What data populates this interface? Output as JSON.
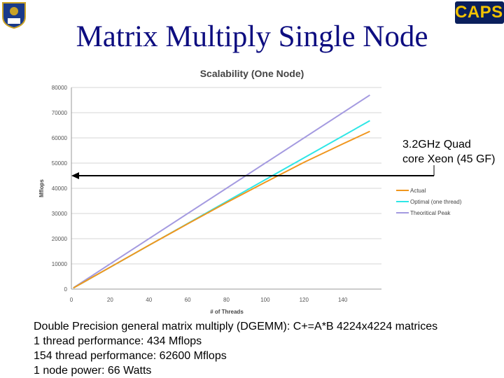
{
  "slide": {
    "title": "Matrix Multiply Single Node",
    "logo_right_text": "CAPSL",
    "callout_lines": [
      "3.2GHz Quad",
      "core Xeon (45 GF)"
    ],
    "footer_lines": [
      "Double Precision general matrix multiply (DGEMM): C+=A*B 4224x4224 matrices",
      "1 thread performance: 434 Mflops",
      "154 thread performance: 62600 Mflops",
      "1 node power: 66 Watts"
    ]
  },
  "chart_data": {
    "type": "line",
    "title": "Scalability (One Node)",
    "xlabel": "# of Threads",
    "ylabel": "Mflops",
    "xlim": [
      0,
      160
    ],
    "ylim": [
      0,
      80000
    ],
    "x_ticks": [
      0,
      20,
      40,
      60,
      80,
      100,
      120,
      140
    ],
    "y_ticks": [
      0,
      10000,
      20000,
      30000,
      40000,
      50000,
      60000,
      70000,
      80000
    ],
    "grid": "horizontal",
    "legend_position": "right",
    "series": [
      {
        "name": "Actual",
        "color": "#f0961e",
        "x": [
          1,
          20,
          40,
          60,
          80,
          100,
          120,
          140,
          154
        ],
        "y": [
          434,
          8700,
          17400,
          25900,
          34300,
          42400,
          50300,
          57600,
          62600
        ]
      },
      {
        "name": "Optimal (one thread)",
        "color": "#2ee6e6",
        "x": [
          1,
          154
        ],
        "y": [
          434,
          66836
        ]
      },
      {
        "name": "Theoritical Peak",
        "color": "#a49ae0",
        "x": [
          1,
          154
        ],
        "y": [
          500,
          77000
        ]
      }
    ],
    "annotation_arrow": {
      "y": 45000,
      "x_from": 160,
      "x_to": 0
    }
  }
}
